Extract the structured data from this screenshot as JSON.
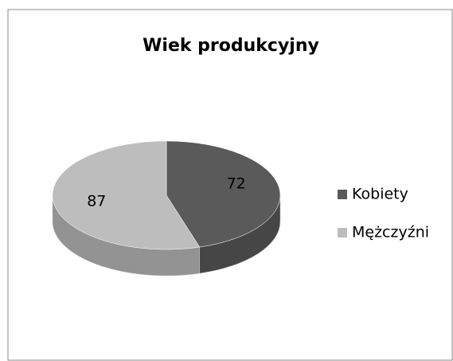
{
  "chart_data": {
    "type": "pie",
    "title": "Wiek produkcyjny",
    "categories": [
      "Kobiety",
      "Mężczyźni"
    ],
    "values": [
      72,
      87
    ],
    "colors": [
      "#5a5a5a",
      "#bdbdbd"
    ],
    "legend": "right"
  }
}
